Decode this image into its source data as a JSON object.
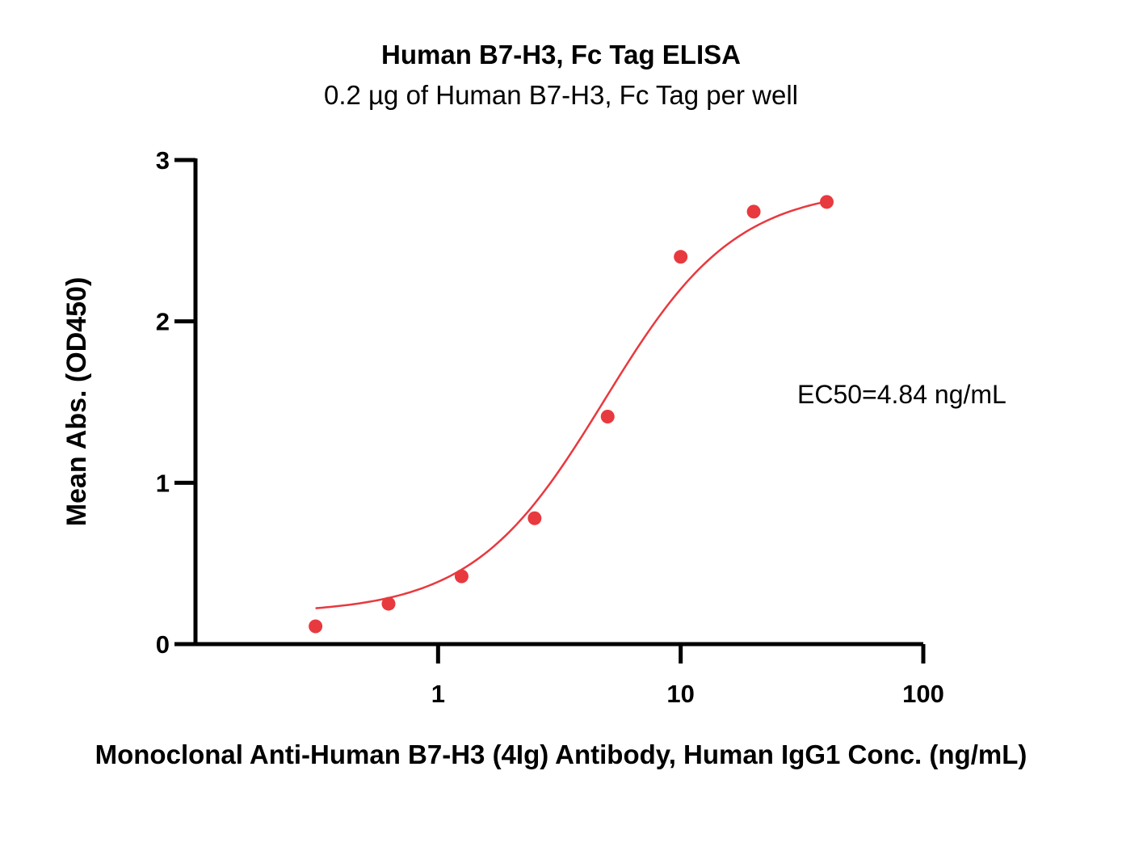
{
  "chart_data": {
    "type": "scatter",
    "title": "Human B7-H3, Fc Tag ELISA",
    "subtitle": "0.2 µg of Human B7-H3, Fc Tag per well",
    "xlabel": "Monoclonal Anti-Human B7-H3 (4Ig) Antibody, Human IgG1 Conc. (ng/mL)",
    "ylabel": "Mean Abs. (OD450)",
    "x_scale": "log",
    "xlim": [
      0.1,
      100
    ],
    "ylim": [
      0,
      3
    ],
    "x_ticks": [
      1,
      10,
      100
    ],
    "x_tick_labels": [
      "1",
      "10",
      "100"
    ],
    "y_ticks": [
      0,
      1,
      2,
      3
    ],
    "y_tick_labels": [
      "0",
      "1",
      "2",
      "3"
    ],
    "grid": false,
    "annotation": "EC50=4.84 ng/mL",
    "color": "#e8393f",
    "series": [
      {
        "x": [
          0.3125,
          0.625,
          1.25,
          2.5,
          5,
          10,
          20,
          40
        ],
        "y": [
          0.11,
          0.25,
          0.42,
          0.78,
          1.41,
          2.4,
          2.68,
          2.74
        ]
      }
    ],
    "fit": {
      "type": "4PL",
      "bottom": 0.19,
      "top": 2.83,
      "ec50": 4.84,
      "hill": 1.6
    }
  }
}
